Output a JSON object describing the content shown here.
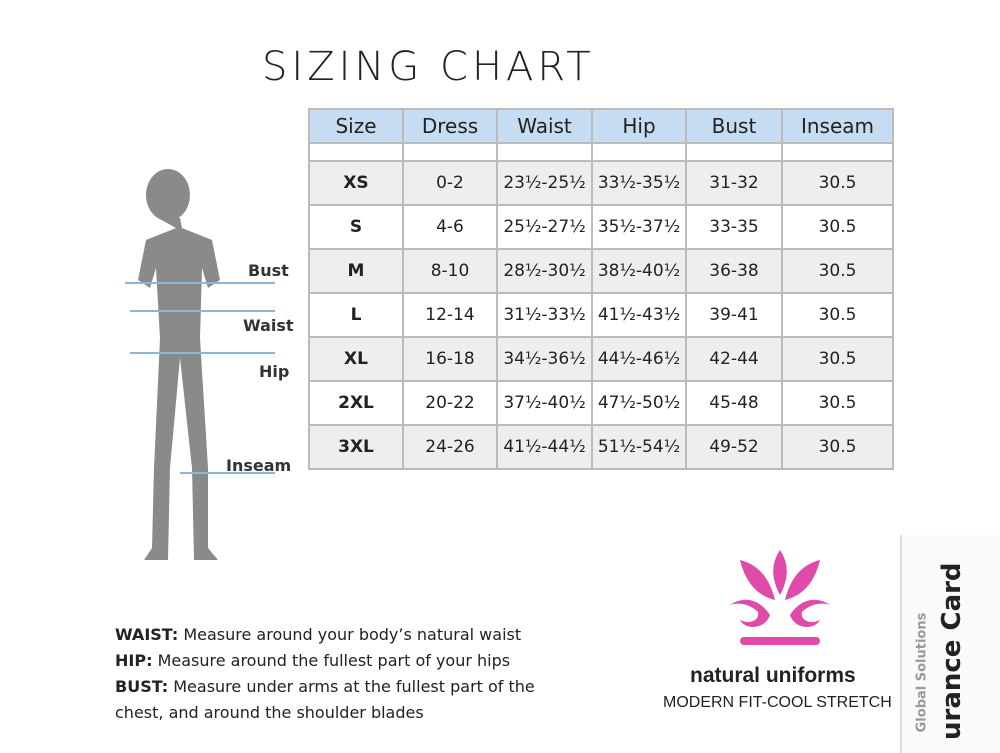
{
  "title": "SIZING CHART",
  "table": {
    "header": [
      "Size",
      "Dress",
      "Waist",
      "Hip",
      "Bust",
      "Inseam"
    ],
    "rows": [
      [
        "XS",
        "0-2",
        "23½-25½",
        "33½-35½",
        "31-32",
        "30.5"
      ],
      [
        "S",
        "4-6",
        "25½-27½",
        "35½-37½",
        "33-35",
        "30.5"
      ],
      [
        "M",
        "8-10",
        "28½-30½",
        "38½-40½",
        "36-38",
        "30.5"
      ],
      [
        "L",
        "12-14",
        "31½-33½",
        "41½-43½",
        "39-41",
        "30.5"
      ],
      [
        "XL",
        "16-18",
        "34½-36½",
        "44½-46½",
        "42-44",
        "30.5"
      ],
      [
        "2XL",
        "20-22",
        "37½-40½",
        "47½-50½",
        "45-48",
        "30.5"
      ],
      [
        "3XL",
        "24-26",
        "41½-44½",
        "51½-54½",
        "49-52",
        "30.5"
      ]
    ]
  },
  "figure": {
    "labels": [
      "Bust",
      "Waist",
      "Hip",
      "Inseam"
    ]
  },
  "notes": [
    {
      "term": "WAIST:",
      "text": "Measure around your body’s natural waist"
    },
    {
      "term": "HIP:",
      "text": "Measure around the fullest part of your hips"
    },
    {
      "term": "BUST:",
      "text": "Measure under arms at the fullest part of the chest, and around the shoulder blades"
    }
  ],
  "brand": {
    "name": "natural uniforms",
    "tagline": "MODERN FIT-COOL STRETCH"
  },
  "side": {
    "lines": [
      "Global Solutions",
      "urance Card"
    ]
  }
}
